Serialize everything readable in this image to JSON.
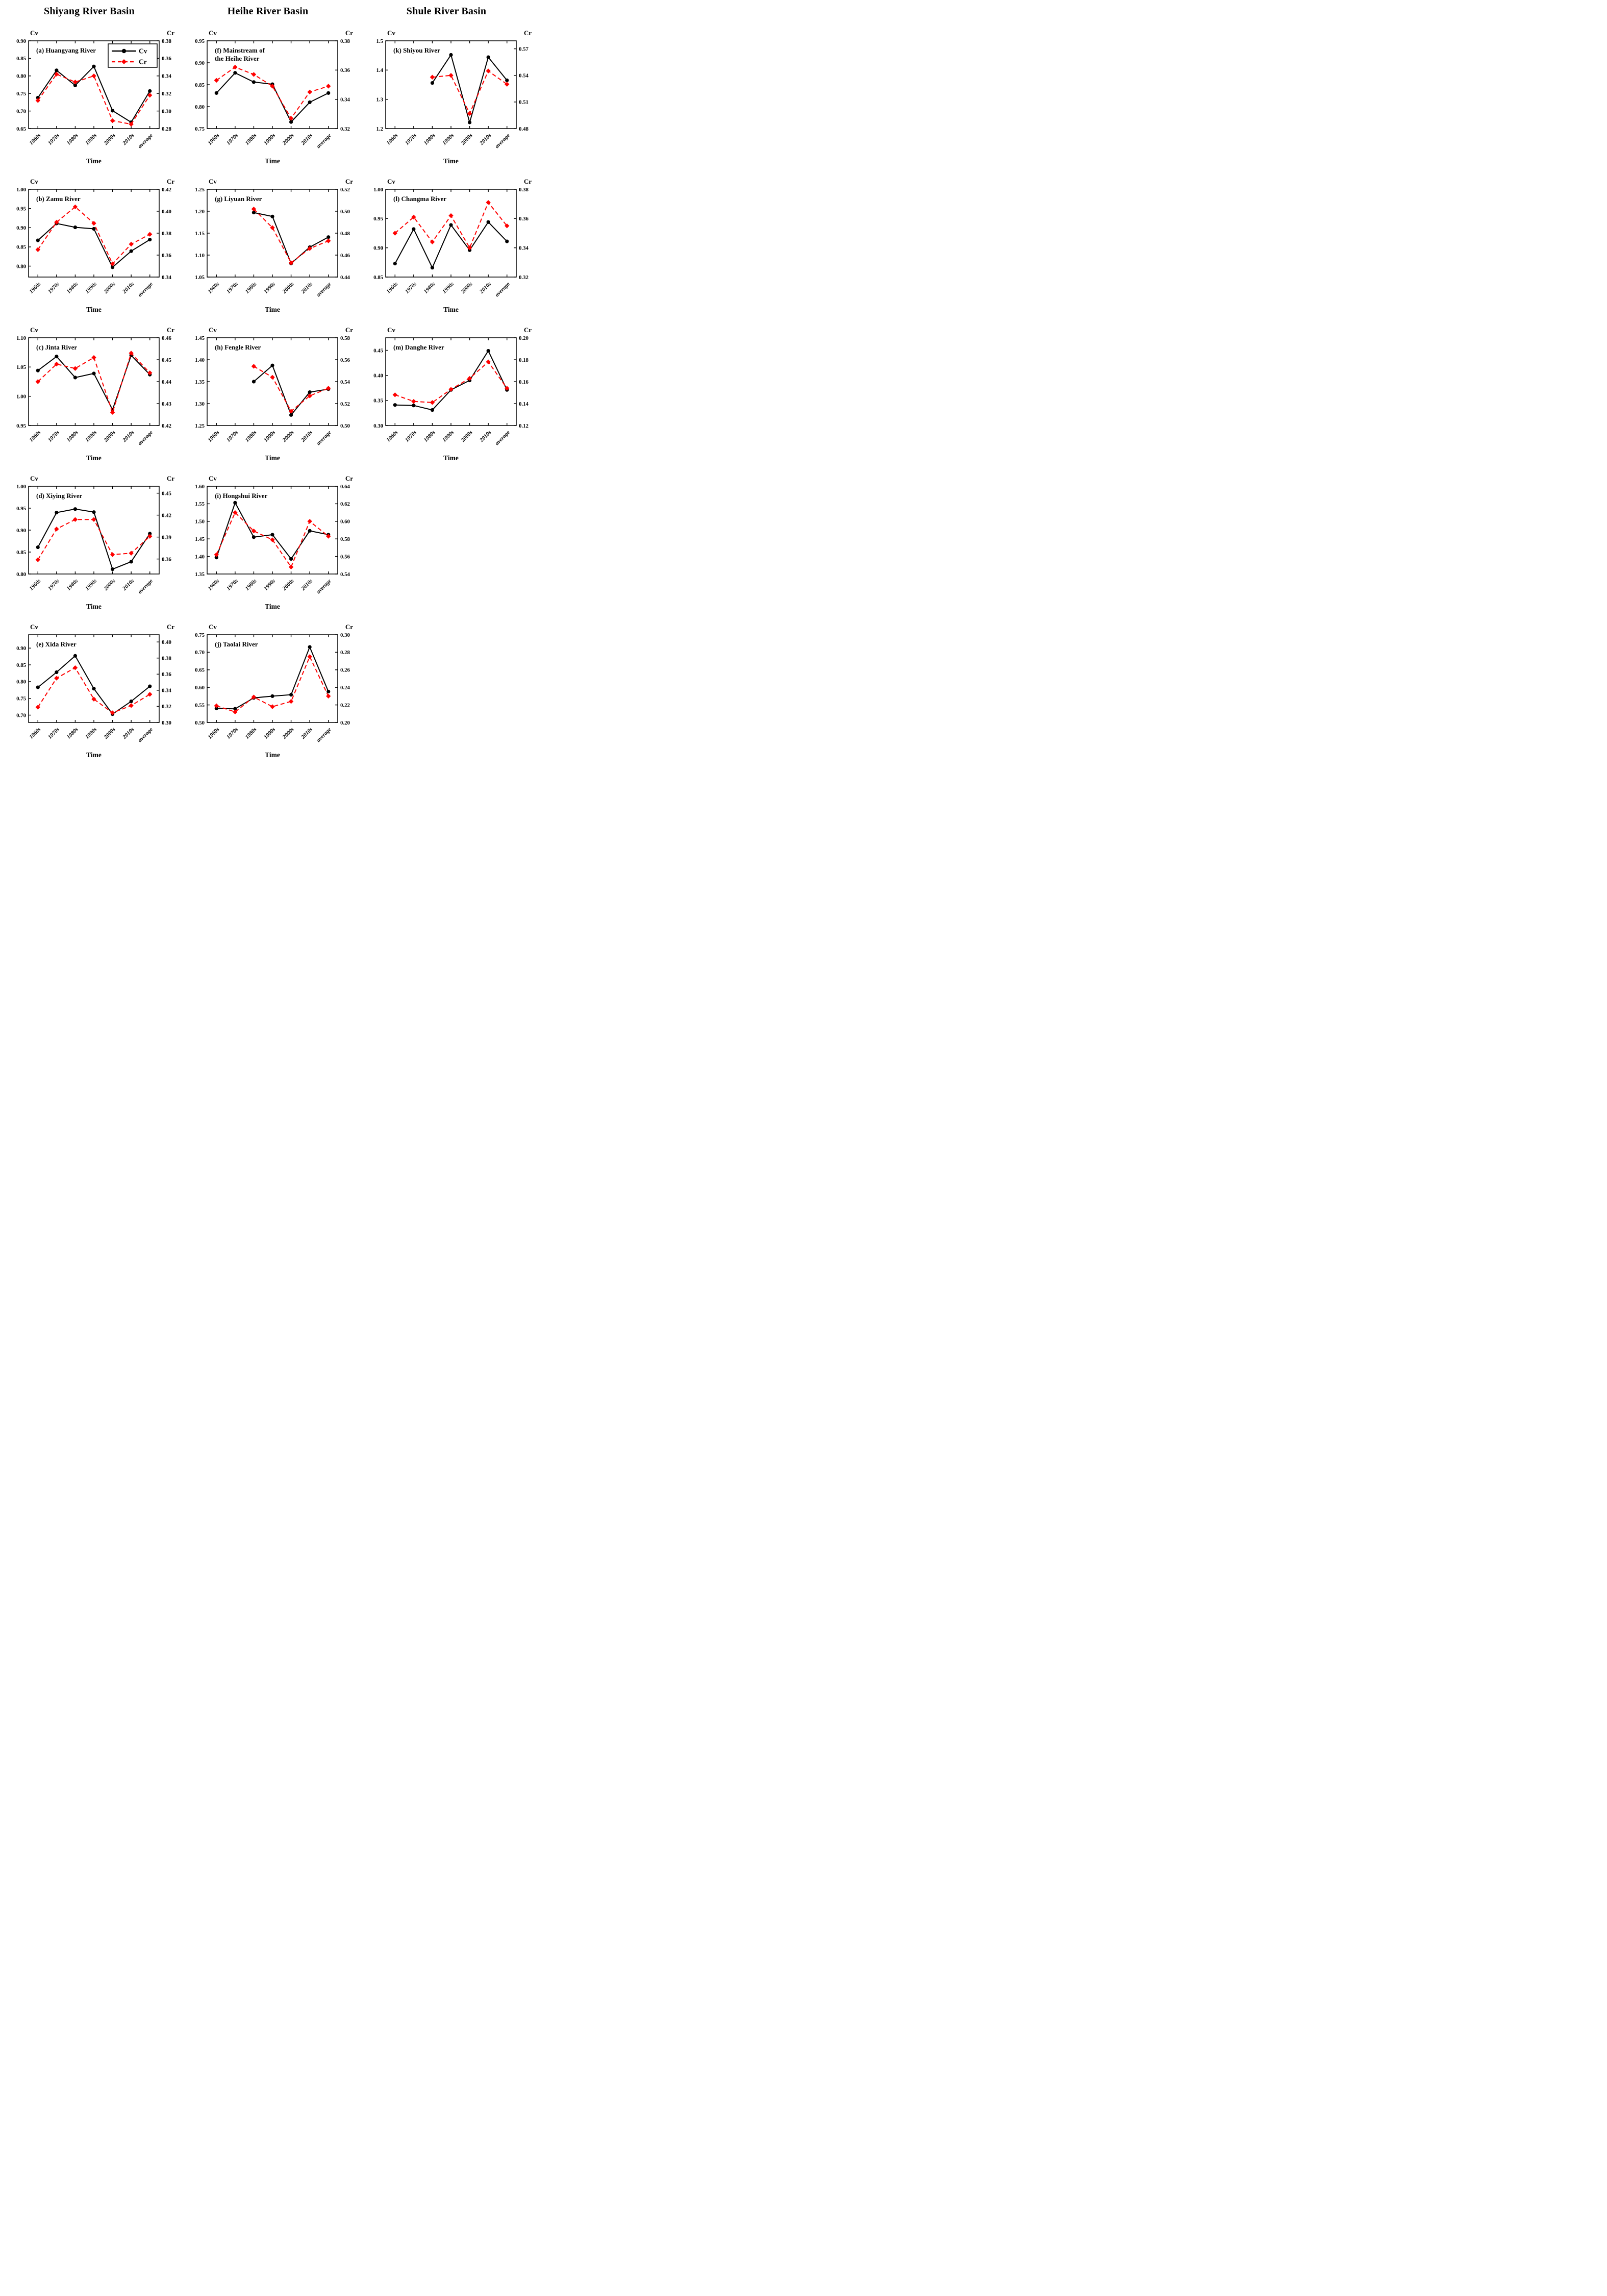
{
  "page": {
    "background": "#ffffff"
  },
  "column_titles": [
    "Shiyang River Basin",
    "Heihe River Basin",
    "Shule River Basin"
  ],
  "axis_labels": {
    "left": "Cv",
    "right": "Cr",
    "x": "Time"
  },
  "legend": {
    "position": "top-right-panel-a",
    "items": [
      {
        "label": "Cv",
        "series": "cv"
      },
      {
        "label": "Cr",
        "series": "cr"
      }
    ]
  },
  "series_styles": {
    "cv": {
      "color": "#000000",
      "line": "solid",
      "marker": "circle"
    },
    "cr": {
      "color": "#ff0000",
      "line": "dashed",
      "marker": "diamond"
    }
  },
  "categories": [
    "1960s",
    "1970s",
    "1980s",
    "1990s",
    "2000s",
    "2010s",
    "average"
  ],
  "chart_data": [
    {
      "id": "a",
      "type": "line",
      "title_lines": [
        "(a) Huangyang River"
      ],
      "col": 0,
      "row": 0,
      "show_legend": true,
      "left_axis": {
        "min": 0.65,
        "max": 0.9,
        "ticks": [
          0.65,
          0.7,
          0.75,
          0.8,
          0.85,
          0.9
        ],
        "decimals": 2
      },
      "right_axis": {
        "min": 0.28,
        "max": 0.38,
        "ticks": [
          0.28,
          0.3,
          0.32,
          0.34,
          0.36,
          0.38
        ],
        "decimals": 2
      },
      "cv": [
        0.738,
        0.816,
        0.773,
        0.827,
        0.701,
        0.668,
        0.757
      ],
      "cr": [
        0.312,
        0.342,
        0.333,
        0.34,
        0.289,
        0.285,
        0.318
      ]
    },
    {
      "id": "b",
      "type": "line",
      "title_lines": [
        "(b) Zamu River"
      ],
      "col": 0,
      "row": 1,
      "show_legend": false,
      "left_axis": {
        "min": 0.7715,
        "max": 1.0,
        "ticks": [
          0.8,
          0.85,
          0.9,
          0.95,
          1.0
        ],
        "decimals": 2
      },
      "right_axis": {
        "min": 0.34,
        "max": 0.42,
        "ticks": [
          0.34,
          0.36,
          0.38,
          0.4,
          0.42
        ],
        "decimals": 2
      },
      "cv": [
        0.867,
        0.911,
        0.901,
        0.897,
        0.797,
        0.839,
        0.869
      ],
      "cr": [
        0.365,
        0.39,
        0.404,
        0.389,
        0.352,
        0.37,
        0.379
      ]
    },
    {
      "id": "c",
      "type": "line",
      "title_lines": [
        "(c) Jinta River"
      ],
      "col": 0,
      "row": 2,
      "show_legend": false,
      "left_axis": {
        "min": 0.95,
        "max": 1.1,
        "ticks": [
          0.95,
          1.0,
          1.05,
          1.1
        ],
        "decimals": 2
      },
      "right_axis": {
        "min": 0.42,
        "max": 0.46,
        "ticks": [
          0.42,
          0.43,
          0.44,
          0.45,
          0.46
        ],
        "decimals": 2
      },
      "cv": [
        1.044,
        1.068,
        1.032,
        1.039,
        0.977,
        1.07,
        1.037
      ],
      "cr": [
        0.44,
        0.448,
        0.446,
        0.451,
        0.426,
        0.453,
        0.444
      ]
    },
    {
      "id": "d",
      "type": "line",
      "title_lines": [
        "(d) Xiying River"
      ],
      "col": 0,
      "row": 3,
      "show_legend": false,
      "left_axis": {
        "min": 0.8,
        "max": 1.0,
        "ticks": [
          0.8,
          0.85,
          0.9,
          0.95,
          1.0
        ],
        "decimals": 2
      },
      "right_axis": {
        "min": 0.3395,
        "max": 0.4595,
        "ticks": [
          0.36,
          0.39,
          0.42,
          0.45
        ],
        "decimals": 2
      },
      "cv": [
        0.861,
        0.94,
        0.948,
        0.941,
        0.811,
        0.828,
        0.892
      ],
      "cr": [
        0.359,
        0.401,
        0.414,
        0.414,
        0.366,
        0.368,
        0.391
      ]
    },
    {
      "id": "e",
      "type": "line",
      "title_lines": [
        "(e) Xida River"
      ],
      "col": 0,
      "row": 4,
      "show_legend": false,
      "left_axis": {
        "min": 0.678,
        "max": 0.94,
        "ticks": [
          0.7,
          0.75,
          0.8,
          0.85,
          0.9
        ],
        "decimals": 2
      },
      "right_axis": {
        "min": 0.3,
        "max": 0.409,
        "ticks": [
          0.3,
          0.32,
          0.34,
          0.36,
          0.38,
          0.4
        ],
        "decimals": 2
      },
      "cv": [
        0.783,
        0.828,
        0.877,
        0.779,
        0.703,
        0.741,
        0.786
      ],
      "cr": [
        0.319,
        0.355,
        0.368,
        0.329,
        0.312,
        0.321,
        0.335
      ]
    },
    {
      "id": "f",
      "type": "line",
      "title_lines": [
        "(f) Mainstream of",
        "the Heihe River"
      ],
      "col": 1,
      "row": 0,
      "show_legend": false,
      "left_axis": {
        "min": 0.75,
        "max": 0.95,
        "ticks": [
          0.75,
          0.8,
          0.85,
          0.9,
          0.95
        ],
        "decimals": 2
      },
      "right_axis": {
        "min": 0.32,
        "max": 0.38,
        "ticks": [
          0.32,
          0.34,
          0.36,
          0.38
        ],
        "decimals": 2
      },
      "cv": [
        0.831,
        0.877,
        0.856,
        0.851,
        0.765,
        0.81,
        0.831
      ],
      "cr": [
        0.353,
        0.362,
        0.357,
        0.349,
        0.327,
        0.345,
        0.349
      ]
    },
    {
      "id": "g",
      "type": "line",
      "title_lines": [
        "(g) Liyuan River"
      ],
      "col": 1,
      "row": 1,
      "show_legend": false,
      "left_axis": {
        "min": 1.05,
        "max": 1.25,
        "ticks": [
          1.05,
          1.1,
          1.15,
          1.2,
          1.25
        ],
        "decimals": 2
      },
      "right_axis": {
        "min": 0.44,
        "max": 0.52,
        "ticks": [
          0.44,
          0.46,
          0.48,
          0.5,
          0.52
        ],
        "decimals": 2
      },
      "cv": [
        null,
        null,
        1.197,
        1.188,
        1.081,
        1.118,
        1.141
      ],
      "cr": [
        null,
        null,
        0.502,
        0.485,
        0.453,
        0.466,
        0.473
      ]
    },
    {
      "id": "h",
      "type": "line",
      "title_lines": [
        "(h) Fengle River"
      ],
      "col": 1,
      "row": 2,
      "show_legend": false,
      "left_axis": {
        "min": 1.25,
        "max": 1.45,
        "ticks": [
          1.25,
          1.3,
          1.35,
          1.4,
          1.45
        ],
        "decimals": 2
      },
      "right_axis": {
        "min": 0.5,
        "max": 0.58,
        "ticks": [
          0.5,
          0.52,
          0.54,
          0.56,
          0.58
        ],
        "decimals": 2
      },
      "cv": [
        null,
        null,
        1.35,
        1.387,
        1.274,
        1.326,
        1.333
      ],
      "cr": [
        null,
        null,
        0.554,
        0.544,
        0.513,
        0.527,
        0.534
      ]
    },
    {
      "id": "i",
      "type": "line",
      "title_lines": [
        "(i) Hongshui River"
      ],
      "col": 1,
      "row": 3,
      "show_legend": false,
      "left_axis": {
        "min": 1.35,
        "max": 1.6,
        "ticks": [
          1.35,
          1.4,
          1.45,
          1.5,
          1.55,
          1.6
        ],
        "decimals": 2
      },
      "right_axis": {
        "min": 0.54,
        "max": 0.64,
        "ticks": [
          0.54,
          0.56,
          0.58,
          0.6,
          0.62,
          0.64
        ],
        "decimals": 2
      },
      "cv": [
        1.397,
        1.553,
        1.455,
        1.462,
        1.393,
        1.473,
        1.462
      ],
      "cr": [
        0.562,
        0.61,
        0.589,
        0.579,
        0.548,
        0.6,
        0.583
      ]
    },
    {
      "id": "j",
      "type": "line",
      "title_lines": [
        "(j) Taolai River"
      ],
      "col": 1,
      "row": 4,
      "show_legend": false,
      "left_axis": {
        "min": 0.5,
        "max": 0.75,
        "ticks": [
          0.5,
          0.55,
          0.6,
          0.65,
          0.7,
          0.75
        ],
        "decimals": 2
      },
      "right_axis": {
        "min": 0.2,
        "max": 0.3,
        "ticks": [
          0.2,
          0.22,
          0.24,
          0.26,
          0.28,
          0.3
        ],
        "decimals": 2
      },
      "cv": [
        0.54,
        0.539,
        0.57,
        0.575,
        0.579,
        0.715,
        0.588
      ],
      "cr": [
        0.219,
        0.212,
        0.229,
        0.218,
        0.224,
        0.275,
        0.23
      ]
    },
    {
      "id": "k",
      "type": "line",
      "title_lines": [
        "(k) Shiyou River"
      ],
      "col": 2,
      "row": 0,
      "show_legend": false,
      "left_axis": {
        "min": 1.2,
        "max": 1.5,
        "ticks": [
          1.2,
          1.3,
          1.4,
          1.5
        ],
        "decimals": 1
      },
      "right_axis": {
        "min": 0.48,
        "max": 0.579,
        "ticks": [
          0.48,
          0.51,
          0.54,
          0.57
        ],
        "decimals": 2
      },
      "cv": [
        null,
        null,
        1.356,
        1.452,
        1.221,
        1.444,
        1.365
      ],
      "cr": [
        null,
        null,
        0.538,
        0.54,
        0.497,
        0.545,
        0.53
      ]
    },
    {
      "id": "l",
      "type": "line",
      "title_lines": [
        "(l) Changma River"
      ],
      "col": 2,
      "row": 1,
      "show_legend": false,
      "left_axis": {
        "min": 0.85,
        "max": 1.0,
        "ticks": [
          0.85,
          0.9,
          0.95,
          1.0
        ],
        "decimals": 2
      },
      "right_axis": {
        "min": 0.32,
        "max": 0.38,
        "ticks": [
          0.32,
          0.34,
          0.36,
          0.38
        ],
        "decimals": 2
      },
      "cv": [
        0.873,
        0.932,
        0.866,
        0.939,
        0.896,
        0.944,
        0.911
      ],
      "cr": [
        0.35,
        0.361,
        0.344,
        0.362,
        0.34,
        0.371,
        0.355
      ]
    },
    {
      "id": "m",
      "type": "line",
      "title_lines": [
        "(m) Danghe River"
      ],
      "col": 2,
      "row": 2,
      "show_legend": false,
      "left_axis": {
        "min": 0.3,
        "max": 0.475,
        "ticks": [
          0.3,
          0.35,
          0.4,
          0.45
        ],
        "decimals": 2
      },
      "right_axis": {
        "min": 0.12,
        "max": 0.2,
        "ticks": [
          0.12,
          0.14,
          0.16,
          0.18,
          0.2
        ],
        "decimals": 2
      },
      "cv": [
        0.341,
        0.34,
        0.331,
        0.371,
        0.39,
        0.449,
        0.371
      ],
      "cr": [
        0.148,
        0.142,
        0.141,
        0.153,
        0.163,
        0.178,
        0.154
      ]
    }
  ]
}
